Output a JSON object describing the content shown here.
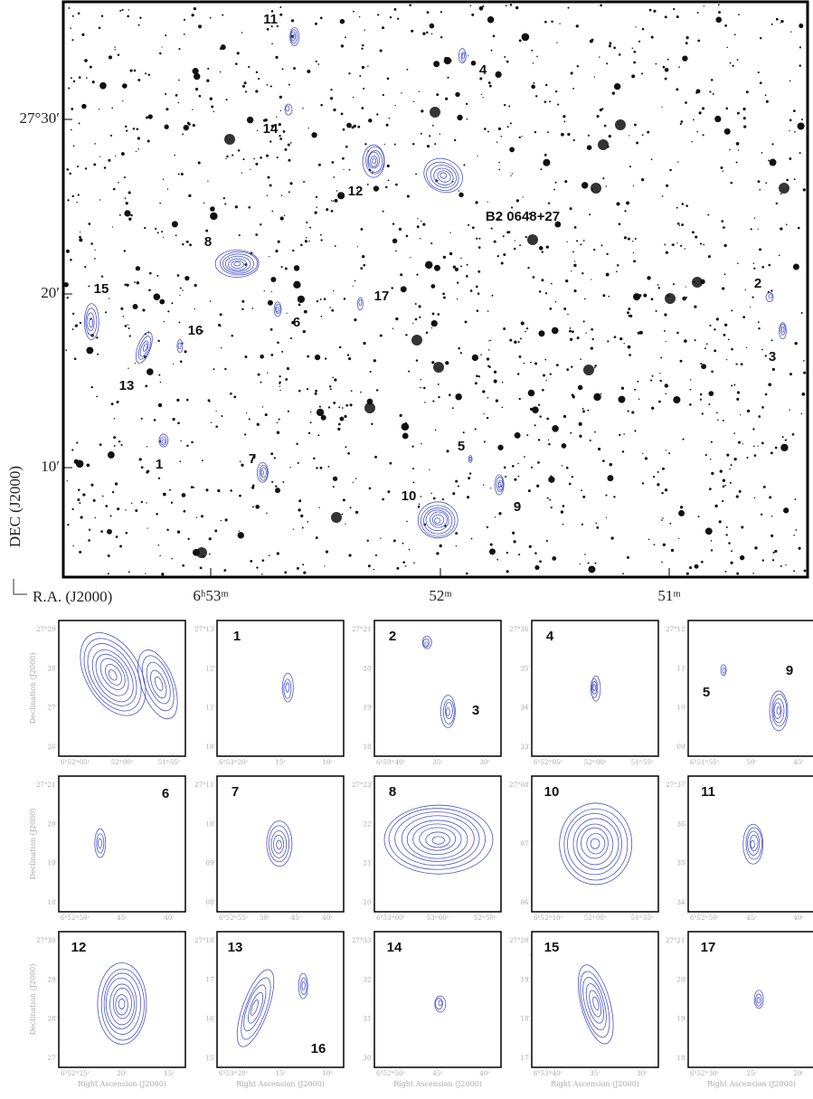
{
  "main": {
    "sources": [
      "11",
      "4",
      "14",
      "12",
      "B2 0648+27",
      "8",
      "15",
      "17",
      "6",
      "16",
      "2",
      "3",
      "13",
      "5",
      "1",
      "7",
      "10",
      "9"
    ],
    "yticks": [
      "27°30′",
      "20′",
      "10′"
    ],
    "xticks": [
      "6ʰ53ᵐ",
      "52ᵐ",
      "51ᵐ"
    ],
    "y_label": "DEC (J2000)",
    "x_label": "R.A. (J2000)"
  },
  "panels": {
    "y_label": "Declination (J2000)",
    "x_label": "Right Ascension (J2000)",
    "items": [
      {
        "labels": [],
        "yticks": [
          "27°29′",
          "28′",
          "27′",
          "26′"
        ],
        "xticks": [
          "6ʰ52ᵐ05ˢ",
          "52ᵐ00ˢ",
          "51ᵐ55ˢ"
        ]
      },
      {
        "labels": [
          "1"
        ],
        "yticks": [
          "27°13′",
          "12′",
          "11′",
          "10′"
        ],
        "xticks": [
          "6ʰ53ᵐ20ˢ",
          "15ˢ",
          "10ˢ"
        ]
      },
      {
        "labels": [
          "2",
          "3"
        ],
        "yticks": [
          "27°21′",
          "20′",
          "19′",
          "18′"
        ],
        "xticks": [
          "6ʰ50ᵐ40ˢ",
          "35ˢ",
          "30ˢ"
        ]
      },
      {
        "labels": [
          "4"
        ],
        "yticks": [
          "27°36′",
          "35′",
          "34′",
          "33′"
        ],
        "xticks": [
          "6ʰ52ᵐ05ˢ",
          "52ᵐ00ˢ",
          "51ᵐ55ˢ"
        ]
      },
      {
        "labels": [
          "5",
          "9"
        ],
        "yticks": [
          "27°12′",
          "11′",
          "10′",
          "09′"
        ],
        "xticks": [
          "6ʰ51ᵐ55ˢ",
          "50ˢ",
          "45ˢ"
        ]
      },
      {
        "labels": [
          "6"
        ],
        "yticks": [
          "27°21′",
          "20′",
          "19′",
          "18′"
        ],
        "xticks": [
          "6ʰ52ᵐ50ˢ",
          "45ˢ",
          "40ˢ"
        ]
      },
      {
        "labels": [
          "7"
        ],
        "yticks": [
          "27°11′",
          "10′",
          "09′",
          "08′"
        ],
        "xticks": [
          "6ʰ52ᵐ55ˢ",
          "50ˢ",
          "45ˢ",
          "40ˢ"
        ]
      },
      {
        "labels": [
          "8"
        ],
        "yticks": [
          "27°23′",
          "22′",
          "21′",
          "20′"
        ],
        "xticks": [
          "6ʰ53ᵐ00ˢ",
          "53ᵐ00ˢ",
          "52ᵐ50ˢ"
        ]
      },
      {
        "labels": [
          "10"
        ],
        "yticks": [
          "27°08′",
          "07′",
          "06′"
        ],
        "xticks": [
          "6ʰ52ᵐ10ˢ",
          "52ᵐ00ˢ",
          "51ᵐ55ˢ"
        ]
      },
      {
        "labels": [
          "11"
        ],
        "yticks": [
          "27°37′",
          "36′",
          "35′",
          "34′"
        ],
        "xticks": [
          "6ʰ52ᵐ50ˢ",
          "45ˢ",
          "40ˢ"
        ]
      },
      {
        "labels": [
          "12"
        ],
        "yticks": [
          "27°30′",
          "29′",
          "28′",
          "27′"
        ],
        "xticks": [
          "6ʰ52ᵐ25ˢ",
          "20ˢ",
          "15ˢ"
        ]
      },
      {
        "labels": [
          "13",
          "16"
        ],
        "yticks": [
          "27°18′",
          "17′",
          "16′",
          "15′"
        ],
        "xticks": [
          "6ʰ53ᵐ20ˢ",
          "15ˢ",
          "10ˢ"
        ]
      },
      {
        "labels": [
          "14"
        ],
        "yticks": [
          "27°33′",
          "32′",
          "31′",
          "30′"
        ],
        "xticks": [
          "6ʰ52ᵐ50ˢ",
          "45ˢ",
          "40ˢ"
        ]
      },
      {
        "labels": [
          "15"
        ],
        "yticks": [
          "27°20′",
          "19′",
          "18′",
          "17′"
        ],
        "xticks": [
          "6ʰ53ᵐ40ˢ",
          "35ˢ",
          "30ˢ"
        ]
      },
      {
        "labels": [
          "17"
        ],
        "yticks": [
          "27°21′",
          "20′",
          "19′",
          "18′"
        ],
        "xticks": [
          "6ʰ52ᵐ30ˢ",
          "25ˢ",
          "20ˢ"
        ]
      }
    ]
  }
}
